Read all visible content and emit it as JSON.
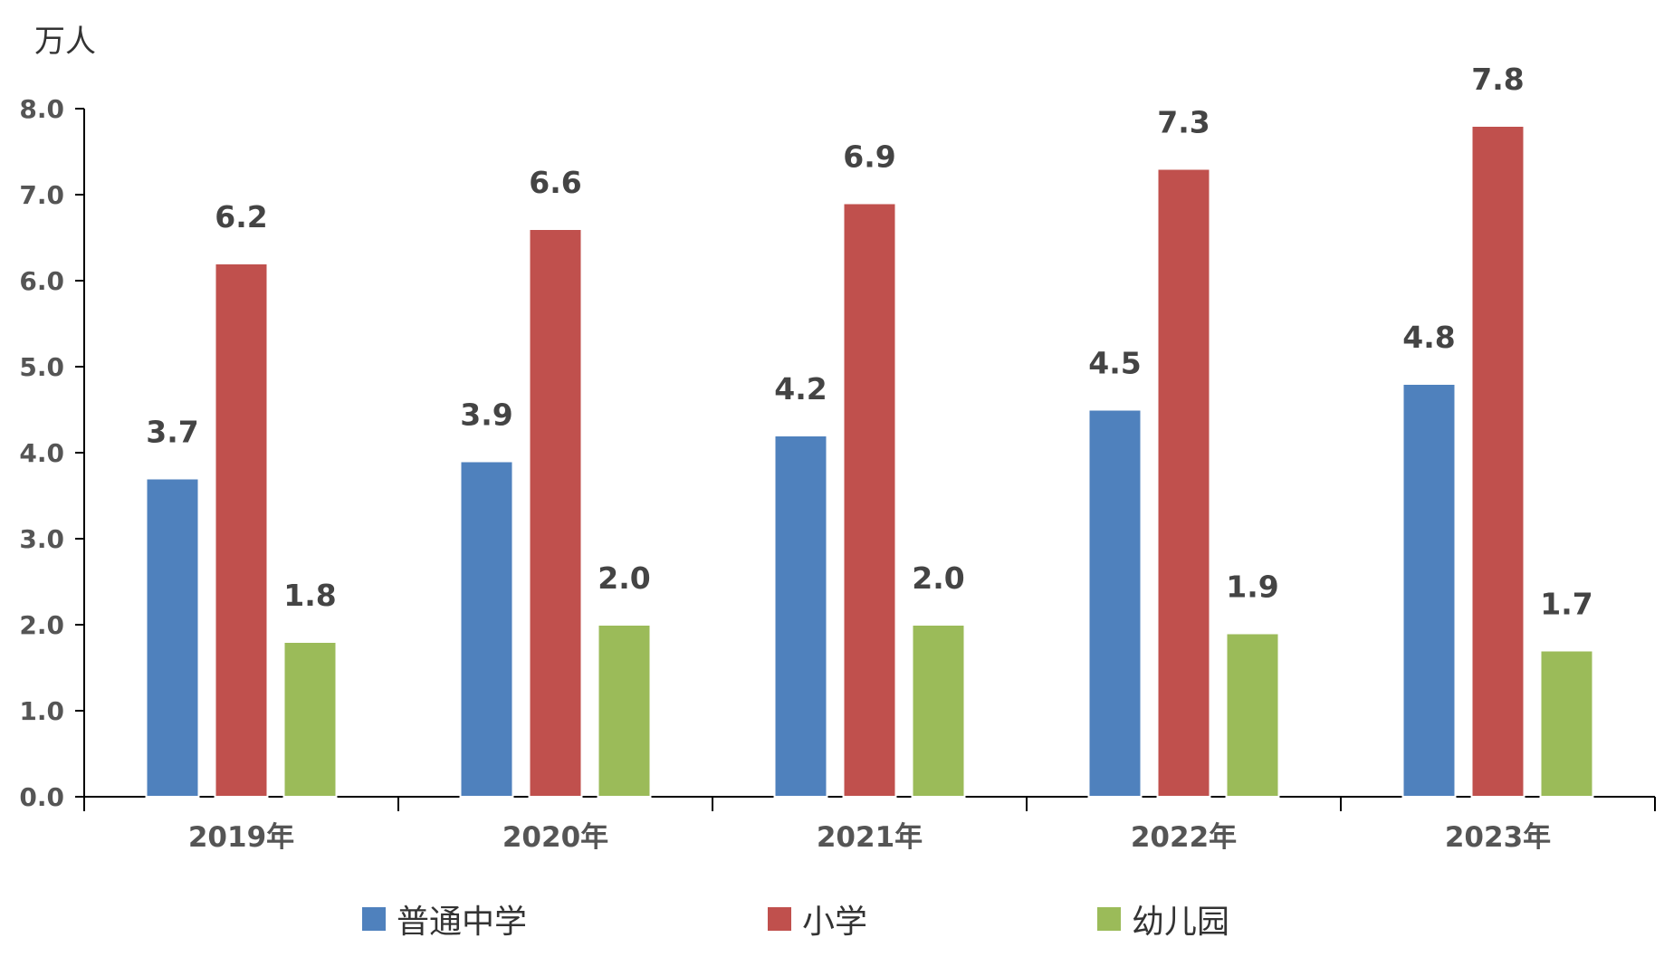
{
  "chart_data": {
    "type": "bar",
    "unit_label": "万人",
    "categories": [
      "2019年",
      "2020年",
      "2021年",
      "2022年",
      "2023年"
    ],
    "series": [
      {
        "name": "普通中学",
        "color": "#4F81BD",
        "values": [
          3.7,
          3.9,
          4.2,
          4.5,
          4.8
        ]
      },
      {
        "name": "小学",
        "color": "#C0504D",
        "values": [
          6.2,
          6.6,
          6.9,
          7.3,
          7.8
        ]
      },
      {
        "name": "幼儿园",
        "color": "#9BBB59",
        "values": [
          1.8,
          2.0,
          2.0,
          1.9,
          1.7
        ]
      }
    ],
    "ylim": [
      0,
      8
    ],
    "y_ticks": [
      "0.0",
      "1.0",
      "2.0",
      "3.0",
      "4.0",
      "5.0",
      "6.0",
      "7.0",
      "8.0"
    ],
    "grid": false,
    "legend_position": "bottom",
    "data_labels": true
  }
}
